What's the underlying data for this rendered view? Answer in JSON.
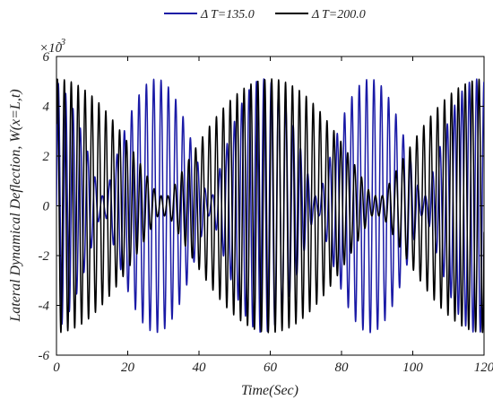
{
  "chart_data": {
    "type": "line",
    "xlabel": "Time(Sec)",
    "ylabel": "Lateral Dynamical Deflection, W(x=L,t)",
    "xlim": [
      0,
      120
    ],
    "ylim": [
      -0.006,
      0.006
    ],
    "y_scale_label": "×10",
    "y_scale_exponent": "-3",
    "x_ticks": [
      "0",
      "20",
      "40",
      "60",
      "80",
      "100",
      "120"
    ],
    "y_ticks": [
      "-6",
      "-4",
      "-2",
      "0",
      "2",
      "4",
      "6"
    ],
    "legend_position": "top-center",
    "grid": false,
    "series": [
      {
        "name": "ΔT=135.0",
        "legend_text": "T=135.0",
        "color": "#1a1aa6",
        "envelope_max": 0.0051,
        "oscillation_period": 2.06,
        "envelope_peaks_at": [
          28,
          58,
          88,
          118
        ],
        "envelope_nodes_at": [
          13,
          43,
          73,
          103
        ]
      },
      {
        "name": "ΔT=200.0",
        "legend_text": "T=200.0",
        "color": "#000000",
        "envelope_max": 0.0051,
        "oscillation_period": 1.94,
        "envelope_peaks_at": [
          0,
          60,
          120
        ],
        "envelope_nodes_at": [
          30,
          90
        ]
      }
    ]
  }
}
